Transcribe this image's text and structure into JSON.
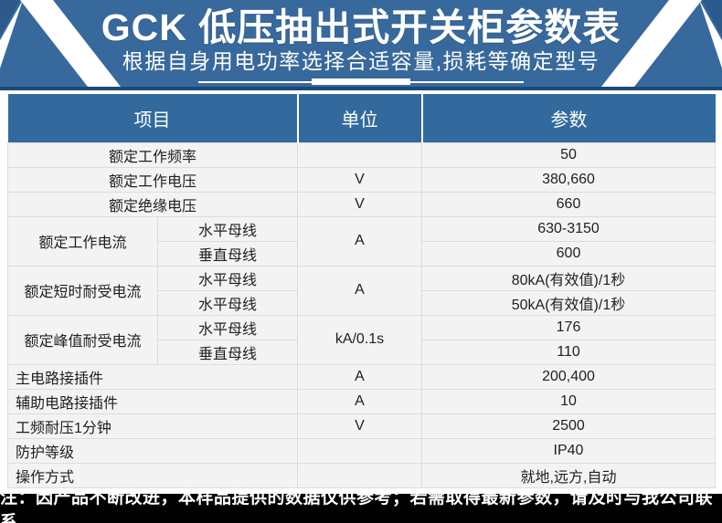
{
  "banner": {
    "title": "GCK 低压抽出式开关柜参数表",
    "subtitle": "根据自身用电功率选择合适容量,损耗等确定型号"
  },
  "table": {
    "headers": [
      "项目",
      "单位",
      "参数"
    ],
    "rows": [
      {
        "cells": [
          {
            "text": "额定工作频率",
            "colspan": 2,
            "name": "item-label-cell"
          },
          {
            "text": "",
            "name": "unit-cell"
          },
          {
            "text": "50",
            "name": "param-value-cell"
          }
        ]
      },
      {
        "cells": [
          {
            "text": "额定工作电压",
            "colspan": 2,
            "name": "item-label-cell"
          },
          {
            "text": "V",
            "name": "unit-cell"
          },
          {
            "text": "380,660",
            "name": "param-value-cell"
          }
        ]
      },
      {
        "cells": [
          {
            "text": "额定绝缘电压",
            "colspan": 2,
            "name": "item-label-cell"
          },
          {
            "text": "V",
            "name": "unit-cell"
          },
          {
            "text": "660",
            "name": "param-value-cell"
          }
        ]
      },
      {
        "cells": [
          {
            "text": "额定工作电流",
            "rowspan": 2,
            "name": "item-label-cell"
          },
          {
            "text": "水平母线",
            "name": "busbar-sublabel-cell"
          },
          {
            "text": "A",
            "rowspan": 2,
            "name": "unit-cell"
          },
          {
            "text": "630-3150",
            "name": "param-value-cell"
          }
        ]
      },
      {
        "cells": [
          {
            "text": "垂直母线",
            "name": "busbar-sublabel-cell"
          },
          {
            "text": "600",
            "name": "param-value-cell"
          }
        ]
      },
      {
        "cells": [
          {
            "text": "额定短时耐受电流",
            "rowspan": 2,
            "name": "item-label-cell"
          },
          {
            "text": "水平母线",
            "name": "busbar-sublabel-cell"
          },
          {
            "text": "A",
            "rowspan": 2,
            "name": "unit-cell"
          },
          {
            "text": "80kA(有效值)/1秒",
            "name": "param-value-cell"
          }
        ]
      },
      {
        "cells": [
          {
            "text": "水平母线",
            "name": "busbar-sublabel-cell"
          },
          {
            "text": "50kA(有效值)/1秒",
            "name": "param-value-cell"
          }
        ]
      },
      {
        "cells": [
          {
            "text": "额定峰值耐受电流",
            "rowspan": 2,
            "name": "item-label-cell"
          },
          {
            "text": "水平母线",
            "name": "busbar-sublabel-cell"
          },
          {
            "text": "kA/0.1s",
            "rowspan": 2,
            "name": "unit-cell"
          },
          {
            "text": "176",
            "name": "param-value-cell"
          }
        ]
      },
      {
        "cells": [
          {
            "text": "垂直母线",
            "name": "busbar-sublabel-cell"
          },
          {
            "text": "110",
            "name": "param-value-cell"
          }
        ]
      },
      {
        "cells": [
          {
            "text": "主电路接插件",
            "colspan": 2,
            "align": "left",
            "name": "item-label-cell"
          },
          {
            "text": "A",
            "name": "unit-cell"
          },
          {
            "text": "200,400",
            "name": "param-value-cell"
          }
        ]
      },
      {
        "cells": [
          {
            "text": "辅助电路接插件",
            "colspan": 2,
            "align": "left",
            "name": "item-label-cell"
          },
          {
            "text": "A",
            "name": "unit-cell"
          },
          {
            "text": "10",
            "name": "param-value-cell"
          }
        ]
      },
      {
        "cells": [
          {
            "text": "工频耐压1分钟",
            "colspan": 2,
            "align": "left",
            "name": "item-label-cell"
          },
          {
            "text": "V",
            "name": "unit-cell"
          },
          {
            "text": "2500",
            "name": "param-value-cell"
          }
        ]
      },
      {
        "cells": [
          {
            "text": "防护等级",
            "colspan": 2,
            "align": "left",
            "name": "item-label-cell"
          },
          {
            "text": "",
            "name": "unit-cell"
          },
          {
            "text": "IP40",
            "name": "param-value-cell"
          }
        ]
      },
      {
        "cells": [
          {
            "text": "操作方式",
            "colspan": 2,
            "align": "left",
            "name": "item-label-cell"
          },
          {
            "text": "",
            "name": "unit-cell"
          },
          {
            "text": "就地,远方,自动",
            "name": "param-value-cell"
          }
        ]
      }
    ]
  },
  "footer": {
    "note": "注：因产品不断改进，本样品提供的数据仅供参考；若需取得最新参数，请及时与我公司联系"
  },
  "colors": {
    "banner_blue": "#38699d",
    "banner_border_navy": "#1a4a78",
    "corner_triangle_blue": "#2d5a8c",
    "header_blue": "#326a9e",
    "row_bg": "#f3f3f3",
    "grid_line": "#dcdcdc",
    "stripe_white": "#ffffff",
    "footer_bg": "#010101"
  }
}
